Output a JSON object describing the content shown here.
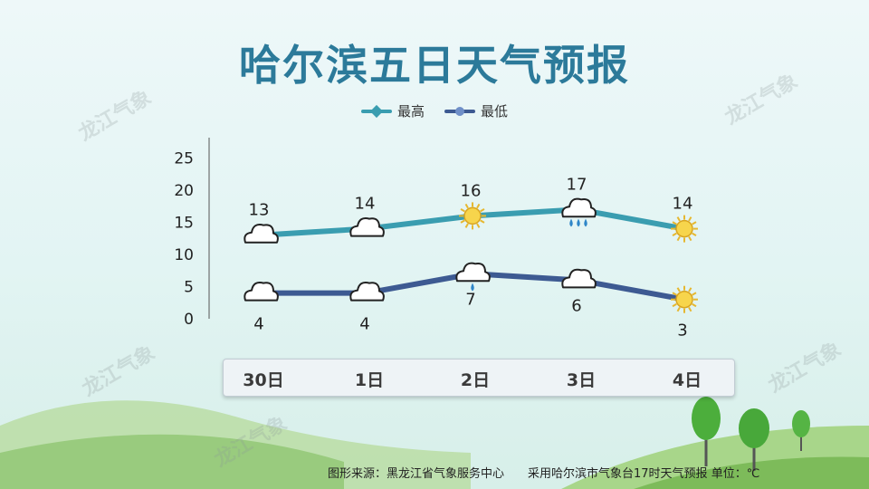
{
  "title": "哈尔滨五日天气预报",
  "watermark_text": "龙江气象",
  "colors": {
    "high_line": "#3a9db0",
    "low_line": "#3d5a92",
    "title": "#2c7a9a"
  },
  "chart_data": {
    "type": "line",
    "categories": [
      "30日",
      "1日",
      "2日",
      "3日",
      "4日"
    ],
    "series": [
      {
        "name": "最高",
        "values": [
          13,
          14,
          16,
          17,
          14
        ],
        "icons": [
          "cloudy-icon",
          "cloudy-icon",
          "sunny-icon",
          "rain-icon",
          "sunny-icon"
        ]
      },
      {
        "name": "最低",
        "values": [
          4,
          4,
          7,
          6,
          3
        ],
        "icons": [
          "cloudy-icon",
          "cloudy-icon",
          "light-rain-icon",
          "cloudy-icon",
          "sunny-icon"
        ]
      }
    ],
    "ylim": [
      0,
      25
    ],
    "yticks": [
      0,
      5,
      10,
      15,
      20,
      25
    ],
    "legend": "top-center",
    "grid": false
  },
  "footer": {
    "source": "图形来源：黑龙江省气象服务中心",
    "note": "采用哈尔滨市气象台17时天气预报 单位：℃"
  }
}
